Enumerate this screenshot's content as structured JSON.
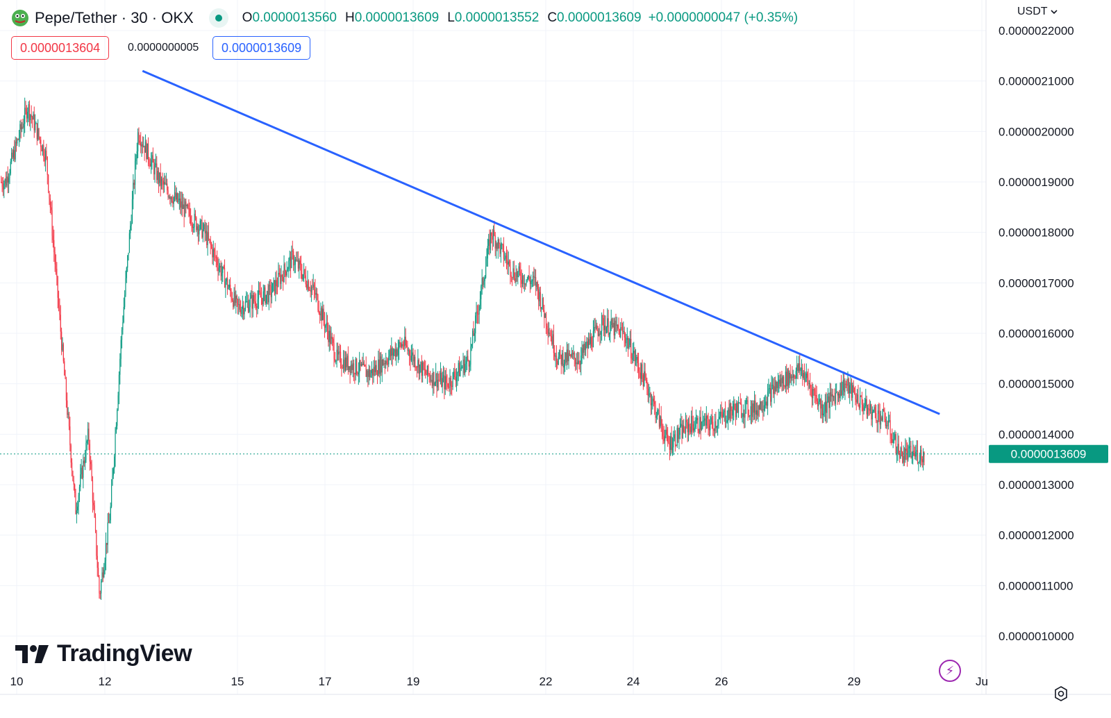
{
  "header": {
    "symbol": "Pepe/Tether · 30 · OKX",
    "open_label": "O",
    "open": "0.0000013560",
    "high_label": "H",
    "high": "0.0000013609",
    "low_label": "L",
    "low": "0.0000013552",
    "close_label": "C",
    "close": "0.0000013609",
    "change": "+0.0000000047 (+0.35%)"
  },
  "quote": {
    "bid": "0.0000013604",
    "spread": "0.0000000005",
    "ask": "0.0000013609"
  },
  "currency": "USDT",
  "branding": "TradingView",
  "colors": {
    "up": "#089981",
    "down": "#f23645",
    "trendline": "#2962ff",
    "grid": "#f0f3fa"
  },
  "chart_data": {
    "type": "candlestick",
    "interval_minutes": 30,
    "x_ticks": [
      "10",
      "12",
      "15",
      "17",
      "19",
      "22",
      "24",
      "26",
      "29",
      "Ju"
    ],
    "y_ticks": [
      "0.0000010000",
      "0.0000011000",
      "0.0000012000",
      "0.0000013000",
      "0.0000014000",
      "0.0000015000",
      "0.0000016000",
      "0.0000017000",
      "0.0000018000",
      "0.0000019000",
      "0.0000020000",
      "0.0000021000",
      "0.0000022000"
    ],
    "ylim": [
      9.8e-07,
      2.22e-06
    ],
    "last_price": "0.0000013609",
    "last_price_value": 1.3609e-06,
    "trendline": {
      "from": [
        "12",
        2.12e-06
      ],
      "to": [
        "30",
        1.44e-06
      ]
    },
    "price_path": [
      [
        "10",
        1.9e-06
      ],
      [
        "10",
        2.05e-06
      ],
      [
        "11",
        1.95e-06
      ],
      [
        "11",
        1.6e-06
      ],
      [
        "11",
        1.25e-06
      ],
      [
        "12",
        1.4e-06
      ],
      [
        "12",
        1.08e-06
      ],
      [
        "12",
        1.25e-06
      ],
      [
        "12",
        1.6e-06
      ],
      [
        "13",
        2e-06
      ],
      [
        "13",
        1.9e-06
      ],
      [
        "14",
        1.85e-06
      ],
      [
        "14",
        1.8e-06
      ],
      [
        "15",
        1.65e-06
      ],
      [
        "16",
        1.68e-06
      ],
      [
        "16",
        1.75e-06
      ],
      [
        "17",
        1.68e-06
      ],
      [
        "17",
        1.55e-06
      ],
      [
        "18",
        1.52e-06
      ],
      [
        "19",
        1.58e-06
      ],
      [
        "19",
        1.52e-06
      ],
      [
        "20",
        1.5e-06
      ],
      [
        "20",
        1.55e-06
      ],
      [
        "21",
        1.8e-06
      ],
      [
        "21",
        1.72e-06
      ],
      [
        "22",
        1.7e-06
      ],
      [
        "22",
        1.55e-06
      ],
      [
        "23",
        1.55e-06
      ],
      [
        "23",
        1.62e-06
      ],
      [
        "24",
        1.6e-06
      ],
      [
        "24",
        1.5e-06
      ],
      [
        "25",
        1.38e-06
      ],
      [
        "25",
        1.42e-06
      ],
      [
        "26",
        1.42e-06
      ],
      [
        "26",
        1.45e-06
      ],
      [
        "27",
        1.45e-06
      ],
      [
        "27",
        1.5e-06
      ],
      [
        "28",
        1.53e-06
      ],
      [
        "28",
        1.45e-06
      ],
      [
        "29",
        1.5e-06
      ],
      [
        "29",
        1.45e-06
      ],
      [
        "30",
        1.43e-06
      ],
      [
        "30",
        1.36e-06
      ],
      [
        "30",
        1.36e-06
      ]
    ]
  }
}
